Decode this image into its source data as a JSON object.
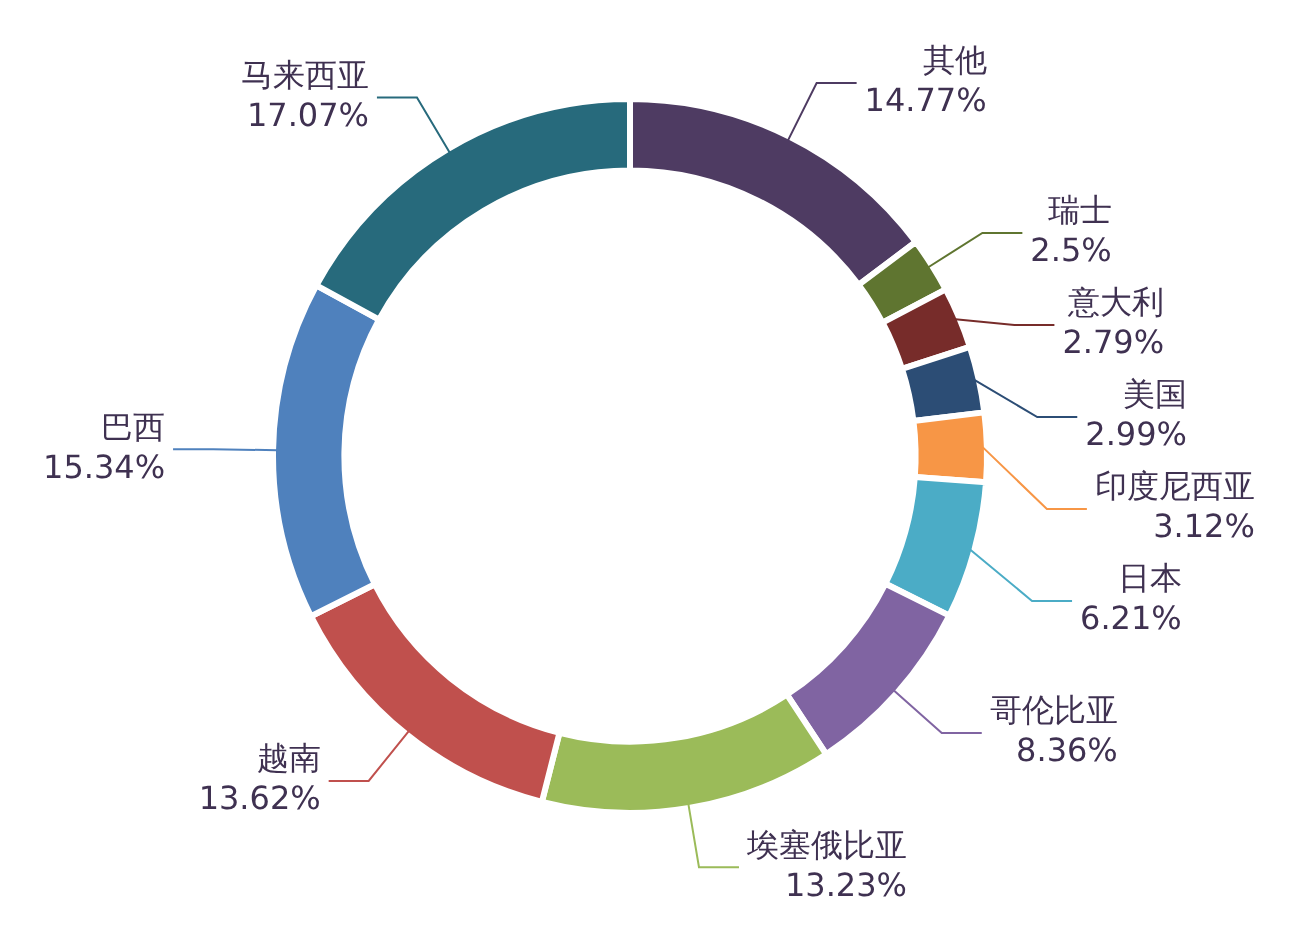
{
  "chart_data": {
    "type": "donut",
    "categories": [
      "其他",
      "瑞士",
      "意大利",
      "美国",
      "印度尼西亚",
      "日本",
      "哥伦比亚",
      "埃塞俄比亚",
      "越南",
      "巴西",
      "马来西亚"
    ],
    "values": [
      14.77,
      2.5,
      2.79,
      2.99,
      3.12,
      6.21,
      8.36,
      13.23,
      13.62,
      15.34,
      17.07
    ],
    "colors": [
      "#4e3b62",
      "#5f7530",
      "#772c2a",
      "#2c4d75",
      "#f79646",
      "#4bacc6",
      "#8064a2",
      "#9bbb59",
      "#c0504d",
      "#4f81bd",
      "#276a7c"
    ],
    "value_labels": [
      "14.77%",
      "2.5%",
      "2.79%",
      "2.99%",
      "3.12%",
      "6.21%",
      "8.36%",
      "13.23%",
      "13.62%",
      "15.34%",
      "17.07%"
    ]
  }
}
